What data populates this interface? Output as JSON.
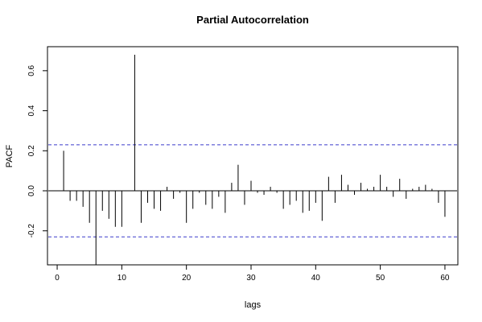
{
  "chart_data": {
    "type": "bar",
    "title": "Partial Autocorrelation",
    "xlabel": "lags",
    "ylabel": "PACF",
    "xlim": [
      -1.5,
      62
    ],
    "ylim": [
      -0.37,
      0.72
    ],
    "x_ticks": [
      0,
      10,
      20,
      30,
      40,
      50,
      60
    ],
    "y_ticks": [
      -0.2,
      0.0,
      0.2,
      0.4,
      0.6
    ],
    "confidence_bounds": [
      -0.23,
      0.23
    ],
    "grid": false,
    "series": [
      {
        "lags": [
          1,
          2,
          3,
          4,
          5,
          6,
          7,
          8,
          9,
          10,
          11,
          12,
          13,
          14,
          15,
          16,
          17,
          18,
          19,
          20,
          21,
          22,
          23,
          24,
          25,
          26,
          27,
          28,
          29,
          30,
          31,
          32,
          33,
          34,
          35,
          36,
          37,
          38,
          39,
          40,
          41,
          42,
          43,
          44,
          45,
          46,
          47,
          48,
          49,
          50,
          51,
          52,
          53,
          54,
          55,
          56,
          57,
          58,
          59,
          60
        ],
        "values": [
          0.2,
          -0.05,
          -0.05,
          -0.08,
          -0.16,
          -0.37,
          -0.1,
          -0.14,
          -0.18,
          -0.18,
          0.0,
          0.68,
          -0.16,
          -0.06,
          -0.09,
          -0.1,
          0.02,
          -0.04,
          -0.01,
          -0.16,
          -0.09,
          -0.01,
          -0.07,
          -0.09,
          -0.03,
          -0.11,
          0.04,
          0.13,
          -0.07,
          0.05,
          -0.01,
          -0.02,
          0.02,
          -0.01,
          -0.09,
          -0.07,
          -0.05,
          -0.11,
          -0.1,
          -0.06,
          -0.15,
          0.07,
          -0.06,
          0.08,
          0.03,
          -0.02,
          0.04,
          0.01,
          0.02,
          0.08,
          0.02,
          -0.03,
          0.06,
          -0.04,
          0.01,
          0.02,
          0.03,
          0.01,
          -0.06,
          -0.13
        ]
      }
    ]
  }
}
